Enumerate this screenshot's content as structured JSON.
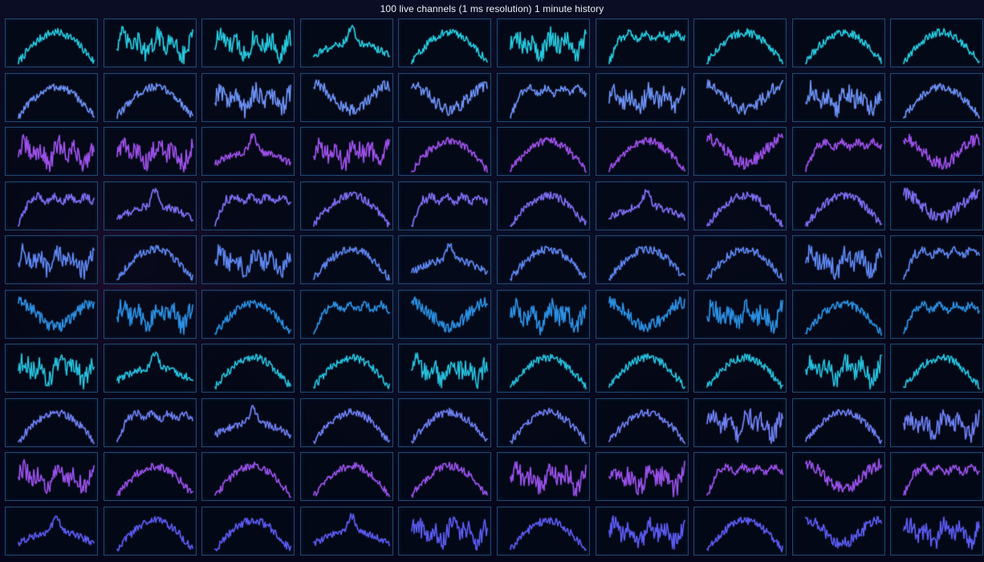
{
  "title": "100 live channels (1 ms resolution) 1 minute history",
  "chart_data": {
    "type": "line",
    "title": "100 live channels (1 ms resolution) 1 minute history",
    "layout": "10x10 grid of small line charts",
    "axes_visible": false,
    "grid": false,
    "legend": "none",
    "row_colors": [
      "#26c6da",
      "#6a8ef0",
      "#9b4fe6",
      "#7e6cf0",
      "#5c84ec",
      "#2b8ee0",
      "#26bcd8",
      "#6d7ef0",
      "#9650e6",
      "#5a5af0"
    ],
    "pattern_names": {
      "A": "dome with peak",
      "B": "jagged oscillation",
      "C": "high plateau after rise",
      "D": "valley with spikes",
      "E": "sharp central peak"
    },
    "channel_patterns": [
      [
        "A",
        "B",
        "B",
        "E",
        "A",
        "B",
        "C",
        "A",
        "A",
        "A"
      ],
      [
        "A",
        "A",
        "B",
        "D",
        "D",
        "C",
        "B",
        "D",
        "B",
        "A"
      ],
      [
        "B",
        "B",
        "E",
        "B",
        "A",
        "A",
        "A",
        "D",
        "C",
        "D"
      ],
      [
        "C",
        "E",
        "C",
        "A",
        "C",
        "A",
        "E",
        "A",
        "A",
        "D"
      ],
      [
        "B",
        "A",
        "B",
        "A",
        "E",
        "A",
        "A",
        "A",
        "B",
        "C"
      ],
      [
        "D",
        "B",
        "A",
        "C",
        "D",
        "B",
        "D",
        "B",
        "A",
        "C"
      ],
      [
        "B",
        "E",
        "A",
        "A",
        "B",
        "A",
        "A",
        "A",
        "B",
        "A"
      ],
      [
        "A",
        "C",
        "E",
        "A",
        "A",
        "A",
        "A",
        "B",
        "A",
        "B"
      ],
      [
        "B",
        "A",
        "A",
        "A",
        "A",
        "B",
        "B",
        "C",
        "D",
        "C"
      ],
      [
        "E",
        "A",
        "A",
        "E",
        "B",
        "A",
        "B",
        "A",
        "D",
        "B"
      ]
    ]
  }
}
